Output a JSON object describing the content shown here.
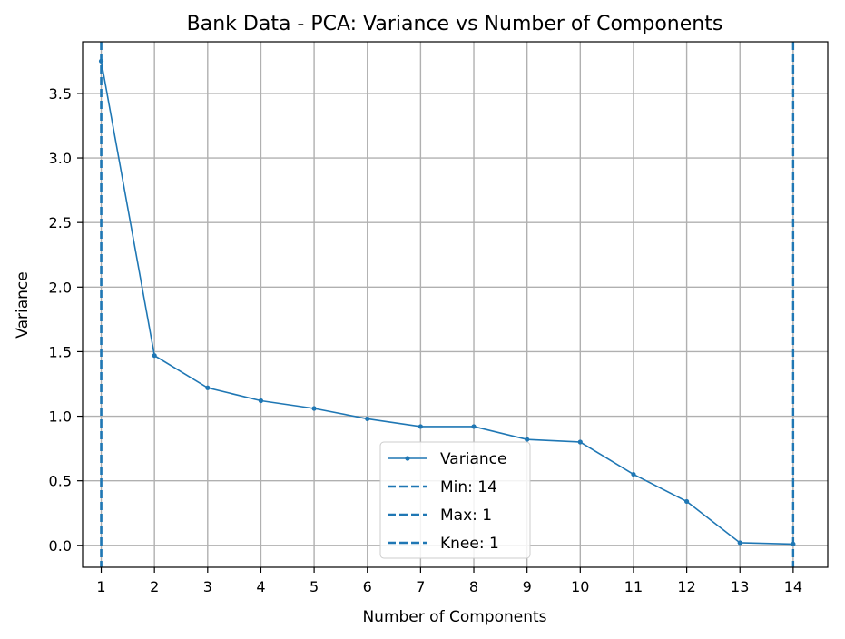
{
  "chart_data": {
    "type": "line",
    "title": "Bank Data - PCA: Variance vs Number of Components",
    "xlabel": "Number of Components",
    "ylabel": "Variance",
    "x": [
      1,
      2,
      3,
      4,
      5,
      6,
      7,
      8,
      9,
      10,
      11,
      12,
      13,
      14
    ],
    "xlim": [
      0.65,
      14.65
    ],
    "ylim": [
      -0.17,
      3.9
    ],
    "xticks": [
      1,
      2,
      3,
      4,
      5,
      6,
      7,
      8,
      9,
      10,
      11,
      12,
      13,
      14
    ],
    "yticks": [
      0.0,
      0.5,
      1.0,
      1.5,
      2.0,
      2.5,
      3.0,
      3.5
    ],
    "ytick_labels": [
      "0.0",
      "0.5",
      "1.0",
      "1.5",
      "2.0",
      "2.5",
      "3.0",
      "3.5"
    ],
    "grid": true,
    "series": [
      {
        "name": "Variance",
        "values": [
          3.75,
          1.47,
          1.22,
          1.12,
          1.06,
          0.98,
          0.92,
          0.92,
          0.82,
          0.8,
          0.55,
          0.34,
          0.02,
          0.01
        ],
        "color": "#1f77b4",
        "marker": "dot"
      }
    ],
    "vlines": [
      {
        "name": "Min: 14",
        "x": 14,
        "color": "#1f77b4",
        "style": "dashed"
      },
      {
        "name": "Max: 1",
        "x": 1,
        "color": "#1f77b4",
        "style": "dashed"
      },
      {
        "name": "Knee: 1",
        "x": 1,
        "color": "#1f77b4",
        "style": "dashed"
      }
    ],
    "legend": {
      "placement": "lower-center",
      "entries": [
        "Variance",
        "Min: 14",
        "Max: 1",
        "Knee: 1"
      ]
    }
  }
}
